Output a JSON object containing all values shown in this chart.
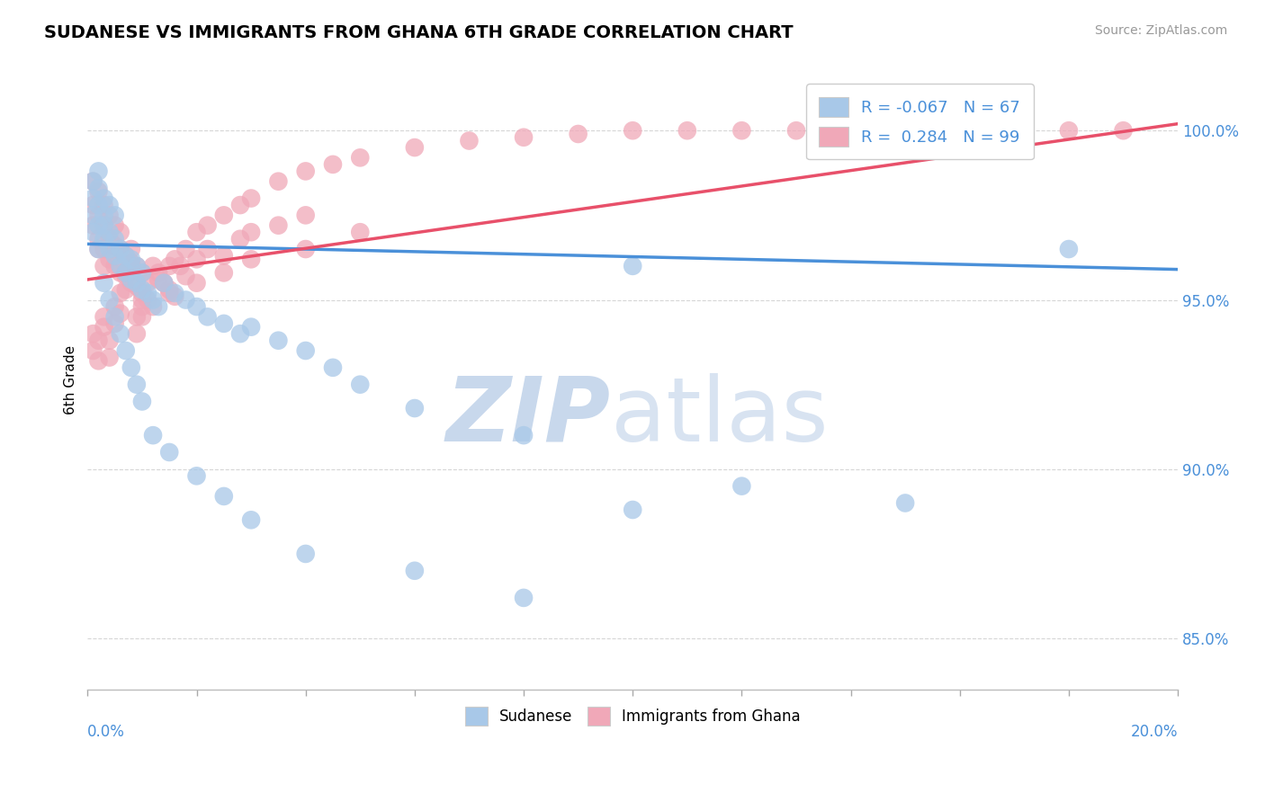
{
  "title": "SUDANESE VS IMMIGRANTS FROM GHANA 6TH GRADE CORRELATION CHART",
  "source_text": "Source: ZipAtlas.com",
  "ylabel": "6th Grade",
  "ylabel_ticks": [
    "85.0%",
    "90.0%",
    "95.0%",
    "100.0%"
  ],
  "ylabel_tick_values": [
    0.85,
    0.9,
    0.95,
    1.0
  ],
  "xlim": [
    0.0,
    0.2
  ],
  "ylim": [
    0.835,
    1.018
  ],
  "blue_color": "#a8c8e8",
  "pink_color": "#f0a8b8",
  "blue_line_color": "#4a90d9",
  "pink_line_color": "#e8506a",
  "legend_blue_R": "-0.067",
  "legend_blue_N": "67",
  "legend_pink_R": "0.284",
  "legend_pink_N": "99",
  "blue_trendline": [
    0.9665,
    0.959
  ],
  "pink_trendline": [
    0.956,
    1.002
  ],
  "blue_scatter_x": [
    0.001,
    0.001,
    0.001,
    0.002,
    0.002,
    0.002,
    0.002,
    0.003,
    0.003,
    0.003,
    0.003,
    0.004,
    0.004,
    0.004,
    0.005,
    0.005,
    0.005,
    0.006,
    0.006,
    0.007,
    0.007,
    0.008,
    0.008,
    0.009,
    0.009,
    0.01,
    0.01,
    0.011,
    0.012,
    0.013,
    0.014,
    0.016,
    0.018,
    0.02,
    0.022,
    0.025,
    0.028,
    0.03,
    0.035,
    0.04,
    0.045,
    0.05,
    0.06,
    0.08,
    0.1,
    0.001,
    0.002,
    0.003,
    0.004,
    0.005,
    0.006,
    0.007,
    0.008,
    0.009,
    0.01,
    0.012,
    0.015,
    0.02,
    0.025,
    0.03,
    0.04,
    0.06,
    0.08,
    0.1,
    0.12,
    0.15,
    0.18
  ],
  "blue_scatter_y": [
    0.98,
    0.975,
    0.985,
    0.978,
    0.983,
    0.972,
    0.988,
    0.975,
    0.98,
    0.968,
    0.972,
    0.965,
    0.97,
    0.978,
    0.963,
    0.968,
    0.975,
    0.96,
    0.965,
    0.958,
    0.963,
    0.956,
    0.962,
    0.955,
    0.96,
    0.953,
    0.958,
    0.952,
    0.95,
    0.948,
    0.955,
    0.952,
    0.95,
    0.948,
    0.945,
    0.943,
    0.94,
    0.942,
    0.938,
    0.935,
    0.93,
    0.925,
    0.918,
    0.91,
    0.96,
    0.97,
    0.965,
    0.955,
    0.95,
    0.945,
    0.94,
    0.935,
    0.93,
    0.925,
    0.92,
    0.91,
    0.905,
    0.898,
    0.892,
    0.885,
    0.875,
    0.87,
    0.862,
    0.888,
    0.895,
    0.89,
    0.965
  ],
  "pink_scatter_x": [
    0.001,
    0.001,
    0.001,
    0.002,
    0.002,
    0.002,
    0.002,
    0.003,
    0.003,
    0.003,
    0.003,
    0.004,
    0.004,
    0.004,
    0.005,
    0.005,
    0.005,
    0.006,
    0.006,
    0.006,
    0.007,
    0.007,
    0.008,
    0.008,
    0.009,
    0.009,
    0.01,
    0.01,
    0.011,
    0.012,
    0.013,
    0.014,
    0.015,
    0.016,
    0.017,
    0.018,
    0.02,
    0.022,
    0.025,
    0.028,
    0.03,
    0.035,
    0.04,
    0.001,
    0.001,
    0.002,
    0.002,
    0.003,
    0.003,
    0.004,
    0.004,
    0.005,
    0.005,
    0.006,
    0.006,
    0.007,
    0.007,
    0.008,
    0.008,
    0.009,
    0.009,
    0.01,
    0.01,
    0.011,
    0.012,
    0.013,
    0.014,
    0.015,
    0.016,
    0.018,
    0.02,
    0.022,
    0.025,
    0.028,
    0.03,
    0.035,
    0.04,
    0.045,
    0.05,
    0.06,
    0.07,
    0.08,
    0.09,
    0.1,
    0.11,
    0.12,
    0.13,
    0.14,
    0.15,
    0.17,
    0.18,
    0.19,
    0.01,
    0.015,
    0.02,
    0.025,
    0.03,
    0.04,
    0.05
  ],
  "pink_scatter_y": [
    0.978,
    0.972,
    0.985,
    0.975,
    0.968,
    0.982,
    0.965,
    0.972,
    0.978,
    0.965,
    0.96,
    0.968,
    0.962,
    0.975,
    0.96,
    0.966,
    0.972,
    0.958,
    0.965,
    0.97,
    0.957,
    0.963,
    0.955,
    0.961,
    0.954,
    0.96,
    0.952,
    0.958,
    0.95,
    0.948,
    0.956,
    0.955,
    0.953,
    0.951,
    0.96,
    0.957,
    0.962,
    0.965,
    0.963,
    0.968,
    0.97,
    0.972,
    0.975,
    0.94,
    0.935,
    0.938,
    0.932,
    0.945,
    0.942,
    0.938,
    0.933,
    0.948,
    0.943,
    0.952,
    0.946,
    0.958,
    0.953,
    0.965,
    0.96,
    0.945,
    0.94,
    0.95,
    0.945,
    0.955,
    0.96,
    0.958,
    0.955,
    0.96,
    0.962,
    0.965,
    0.97,
    0.972,
    0.975,
    0.978,
    0.98,
    0.985,
    0.988,
    0.99,
    0.992,
    0.995,
    0.997,
    0.998,
    0.999,
    1.0,
    1.0,
    1.0,
    1.0,
    1.0,
    1.0,
    1.0,
    1.0,
    1.0,
    0.948,
    0.952,
    0.955,
    0.958,
    0.962,
    0.965,
    0.97
  ]
}
